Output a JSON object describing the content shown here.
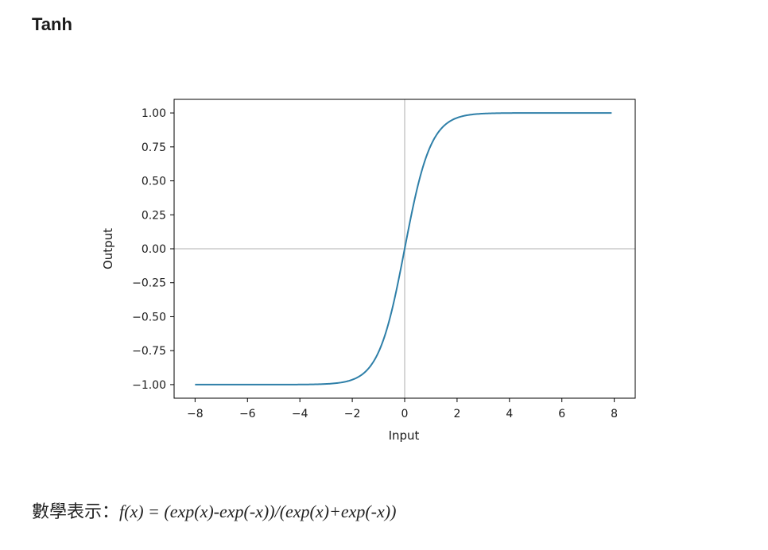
{
  "section": {
    "title": "Tanh"
  },
  "formula": {
    "label": "數學表示：",
    "expression": "f(x) = (exp(x)-exp(-x))/(exp(x)+exp(-x))"
  },
  "chart_data": {
    "type": "line",
    "title": "",
    "xlabel": "Input",
    "ylabel": "Output",
    "xlim": [
      -8.8,
      8.8
    ],
    "ylim": [
      -1.1,
      1.1
    ],
    "xticks": [
      -8,
      -6,
      -4,
      -2,
      0,
      2,
      4,
      6,
      8
    ],
    "xtick_labels": [
      "−8",
      "−6",
      "−4",
      "−2",
      "0",
      "2",
      "4",
      "6",
      "8"
    ],
    "yticks": [
      1.0,
      0.75,
      0.5,
      0.25,
      0.0,
      -0.25,
      -0.5,
      -0.75,
      -1.0
    ],
    "ytick_labels": [
      "1.00",
      "0.75",
      "0.50",
      "0.25",
      "0.00",
      "−0.25",
      "−0.50",
      "−0.75",
      "−1.00"
    ],
    "reference_lines": {
      "x": 0,
      "y": 0,
      "color": "#cccccc"
    },
    "grid": false,
    "series": [
      {
        "name": "tanh",
        "function": "tanh",
        "color": "#2e7fa8",
        "x_range": [
          -8,
          7.9
        ],
        "x": [
          -8,
          -7,
          -6,
          -5,
          -4,
          -3,
          -2.5,
          -2,
          -1.5,
          -1,
          -0.5,
          0,
          0.5,
          1,
          1.5,
          2,
          2.5,
          3,
          4,
          5,
          6,
          7,
          7.9
        ],
        "y": [
          -1.0,
          -1.0,
          -1.0,
          -0.9999,
          -0.9993,
          -0.9951,
          -0.9866,
          -0.964,
          -0.9051,
          -0.7616,
          -0.4621,
          0.0,
          0.4621,
          0.7616,
          0.9051,
          0.964,
          0.9866,
          0.9951,
          0.9993,
          0.9999,
          1.0,
          1.0,
          1.0
        ]
      }
    ]
  }
}
